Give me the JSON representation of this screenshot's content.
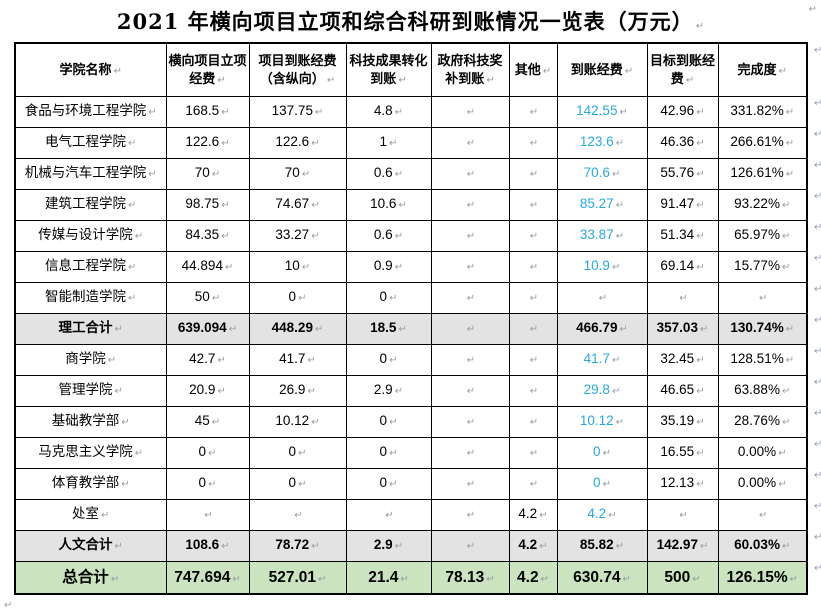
{
  "page": {
    "title": "2021 年横向项目立项和综合科研到账情况一览表（万元）",
    "paragraph_mark": "↵"
  },
  "colors": {
    "accent_blue": "#29A9E1",
    "subtotal_row_bg": "#E3E3E3",
    "total_row_bg": "#CBE3BE",
    "formatting_mark": "#959CA6",
    "table_border": "#000000"
  },
  "table": {
    "headers": [
      "学院名称",
      "横向项目立项经费",
      "项目到账经费（含纵向）",
      "科技成果转化到账",
      "政府科技奖补到账",
      "其他",
      "到账经费",
      "目标到账经费",
      "完成度"
    ],
    "rows": [
      {
        "name": "食品与环境工程学院",
        "type": "normal",
        "values": [
          "168.5",
          "137.75",
          "4.8",
          "",
          "",
          "142.55",
          "42.96",
          "331.82%"
        ]
      },
      {
        "name": "电气工程学院",
        "type": "normal",
        "values": [
          "122.6",
          "122.6",
          "1",
          "",
          "",
          "123.6",
          "46.36",
          "266.61%"
        ]
      },
      {
        "name": "机械与汽车工程学院",
        "type": "normal",
        "values": [
          "70",
          "70",
          "0.6",
          "",
          "",
          "70.6",
          "55.76",
          "126.61%"
        ]
      },
      {
        "name": "建筑工程学院",
        "type": "normal",
        "values": [
          "98.75",
          "74.67",
          "10.6",
          "",
          "",
          "85.27",
          "91.47",
          "93.22%"
        ]
      },
      {
        "name": "传媒与设计学院",
        "type": "normal",
        "values": [
          "84.35",
          "33.27",
          "0.6",
          "",
          "",
          "33.87",
          "51.34",
          "65.97%"
        ]
      },
      {
        "name": "信息工程学院",
        "type": "normal",
        "values": [
          "44.894",
          "10",
          "0.9",
          "",
          "",
          "10.9",
          "69.14",
          "15.77%"
        ]
      },
      {
        "name": "智能制造学院",
        "type": "normal",
        "values": [
          "50",
          "0",
          "0",
          "",
          "",
          "",
          "",
          ""
        ]
      },
      {
        "name": "理工合计",
        "type": "subtotal",
        "values": [
          "639.094",
          "448.29",
          "18.5",
          "",
          "",
          "466.79",
          "357.03",
          "130.74%"
        ]
      },
      {
        "name": "商学院",
        "type": "normal",
        "values": [
          "42.7",
          "41.7",
          "0",
          "",
          "",
          "41.7",
          "32.45",
          "128.51%"
        ]
      },
      {
        "name": "管理学院",
        "type": "normal",
        "values": [
          "20.9",
          "26.9",
          "2.9",
          "",
          "",
          "29.8",
          "46.65",
          "63.88%"
        ]
      },
      {
        "name": "基础教学部",
        "type": "normal",
        "values": [
          "45",
          "10.12",
          "0",
          "",
          "",
          "10.12",
          "35.19",
          "28.76%"
        ]
      },
      {
        "name": "马克思主义学院",
        "type": "normal",
        "values": [
          "0",
          "0",
          "0",
          "",
          "",
          "0",
          "16.55",
          "0.00%"
        ]
      },
      {
        "name": "体育教学部",
        "type": "normal",
        "values": [
          "0",
          "0",
          "0",
          "",
          "",
          "0",
          "12.13",
          "0.00%"
        ]
      },
      {
        "name": "处室",
        "type": "normal",
        "values": [
          "",
          "",
          "",
          "",
          "4.2",
          "4.2",
          "",
          ""
        ]
      },
      {
        "name": "人文合计",
        "type": "subtotal",
        "values": [
          "108.6",
          "78.72",
          "2.9",
          "",
          "4.2",
          "85.82",
          "142.97",
          "60.03%"
        ]
      },
      {
        "name": "总合计",
        "type": "total",
        "values": [
          "747.694",
          "527.01",
          "21.4",
          "78.13",
          "4.2",
          "630.74",
          "500",
          "126.15%"
        ]
      }
    ],
    "blue_value_column_index": 5
  }
}
